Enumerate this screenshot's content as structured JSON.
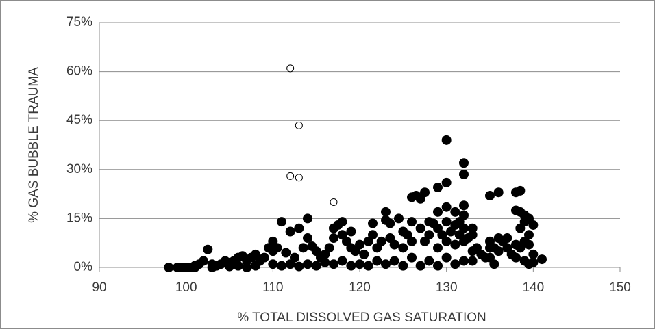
{
  "chart_data": {
    "type": "scatter",
    "x_label": "% TOTAL DISSOLVED GAS SATURATION",
    "y_label": "% GAS BUBBLE TRAUMA",
    "xlim": [
      90,
      150
    ],
    "xticks": [
      90,
      100,
      110,
      120,
      130,
      140,
      150
    ],
    "ylim": [
      0,
      75
    ],
    "yticks": [
      {
        "value": 0,
        "label": "0%"
      },
      {
        "value": 15,
        "label": "15%"
      },
      {
        "value": 30,
        "label": "30%"
      },
      {
        "value": 45,
        "label": "45%"
      },
      {
        "value": 60,
        "label": "60%"
      },
      {
        "value": 75,
        "label": "75%"
      }
    ],
    "grid": true,
    "series": [
      {
        "color": "#000000",
        "marker": "filled",
        "x": [
          98,
          99,
          99.5,
          100,
          100.5,
          101,
          101.5,
          102,
          102.5,
          103,
          103.5,
          104,
          104.5,
          105,
          105.5,
          106,
          106.5,
          107,
          107.5,
          108,
          108.5,
          109,
          109.5,
          110,
          110,
          110.5,
          111,
          111.5,
          112,
          112.5,
          113,
          113.5,
          114,
          114,
          114.5,
          115,
          115.5,
          116,
          116.5,
          117,
          117,
          117.5,
          118,
          118,
          118.5,
          119,
          119,
          119.5,
          120,
          120.5,
          121,
          121.5,
          121.5,
          122,
          122.5,
          123,
          123,
          123.5,
          123.5,
          124,
          124.5,
          125,
          125,
          125.5,
          126,
          126,
          126,
          126.5,
          127,
          127,
          127.5,
          127.5,
          128,
          128,
          128.5,
          129,
          129,
          129,
          129,
          129.5,
          130,
          130,
          130,
          130,
          130,
          130.5,
          131,
          131,
          131,
          131.5,
          131.5,
          132,
          132,
          132,
          132,
          132,
          132,
          132.5,
          133,
          133,
          133,
          133,
          133.5,
          134,
          134.5,
          135,
          135,
          135,
          135,
          135.5,
          135.5,
          136,
          136,
          136,
          136.5,
          137,
          137,
          137.5,
          138,
          138,
          138,
          138,
          138.5,
          138.5,
          138.5,
          138.5,
          139,
          139,
          139,
          139,
          139.5,
          139.5,
          139.5,
          139.5,
          140,
          140,
          140,
          141,
          105,
          108,
          110,
          112,
          114,
          116,
          118,
          120,
          122,
          124,
          126,
          128,
          130,
          132,
          106,
          111,
          115,
          119,
          121,
          125,
          127,
          129,
          131,
          113,
          117,
          123,
          101,
          103,
          107
        ],
        "values": [
          0,
          0,
          0,
          0,
          0,
          0.5,
          1,
          2,
          5.5,
          1,
          0.5,
          1,
          2,
          1.5,
          2,
          3,
          3.5,
          2,
          3,
          4,
          2,
          3,
          6,
          8,
          5,
          6,
          14,
          4.5,
          11,
          3,
          12,
          6,
          15,
          9,
          6.5,
          5,
          3,
          4,
          6,
          12,
          9,
          13,
          14,
          10,
          8,
          11,
          6,
          5,
          7,
          4,
          8,
          13.5,
          10,
          6,
          8,
          17,
          14.5,
          13.5,
          9,
          7,
          15,
          11,
          6,
          10,
          21.5,
          14,
          8,
          22,
          21,
          12,
          23,
          8,
          14,
          10,
          13.5,
          24.5,
          17,
          12,
          6,
          10,
          39,
          26,
          18.5,
          14,
          8,
          11,
          17,
          13,
          7,
          14,
          10,
          32,
          28.5,
          19,
          16,
          12,
          8,
          9,
          12,
          10,
          5,
          2,
          6,
          4,
          3,
          22,
          8,
          6,
          3,
          6,
          1,
          23,
          9,
          5,
          8,
          9,
          6,
          4,
          23,
          17.5,
          7,
          3,
          23.5,
          17,
          12,
          6,
          16,
          14,
          8,
          2,
          15,
          10,
          7,
          1,
          13,
          4,
          1.5,
          2.5,
          0.3,
          0.5,
          1,
          1,
          1,
          1.5,
          2,
          1,
          2,
          2,
          3,
          2,
          3,
          2,
          0.5,
          0.5,
          0.5,
          0.5,
          0.5,
          0.5,
          0.5,
          0.5,
          1,
          0.3,
          1,
          1,
          0,
          0,
          0
        ]
      },
      {
        "color": "#000000",
        "marker": "open",
        "x": [
          112,
          113,
          112,
          113,
          117
        ],
        "values": [
          61,
          43.5,
          28,
          27.5,
          20
        ]
      }
    ]
  }
}
